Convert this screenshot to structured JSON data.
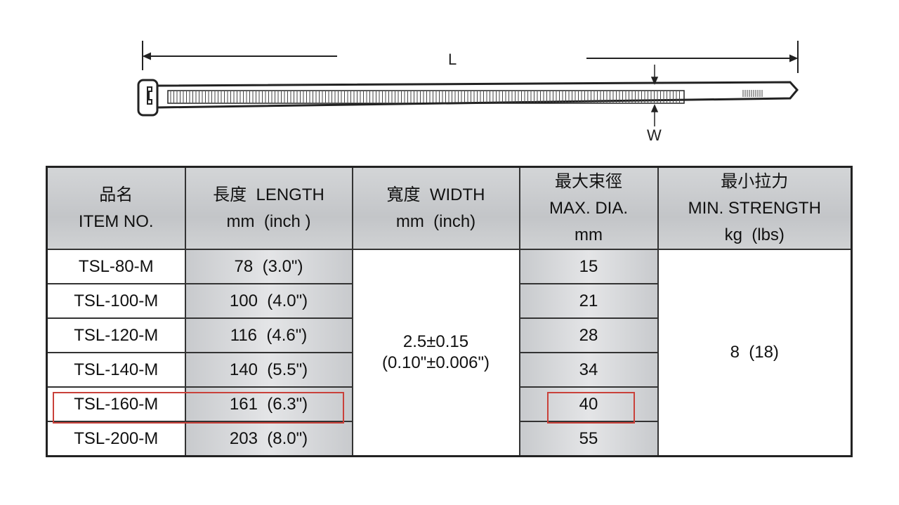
{
  "diagram": {
    "length_label": "L",
    "width_label": "W"
  },
  "table": {
    "headers": [
      {
        "zh": "品名",
        "en": "ITEM NO.",
        "unit": ""
      },
      {
        "zh": "長度",
        "en": "LENGTH",
        "unit": "mm  (inch )"
      },
      {
        "zh": "寬度",
        "en": "WIDTH",
        "unit": "mm  (inch)"
      },
      {
        "zh": "最大束徑",
        "en": "MAX. DIA.",
        "unit": "mm"
      },
      {
        "zh": "最小拉力",
        "en": "MIN. STRENGTH",
        "unit": "kg  (lbs)"
      }
    ],
    "rows": [
      {
        "item": "TSL-80-M",
        "length": "78  (3.0\")",
        "max_dia": "15"
      },
      {
        "item": "TSL-100-M",
        "length": "100  (4.0\")",
        "max_dia": "21"
      },
      {
        "item": "TSL-120-M",
        "length": "116  (4.6\")",
        "max_dia": "28"
      },
      {
        "item": "TSL-140-M",
        "length": "140  (5.5\")",
        "max_dia": "34"
      },
      {
        "item": "TSL-160-M",
        "length": "161  (6.3\")",
        "max_dia": "40",
        "highlighted": true
      },
      {
        "item": "TSL-200-M",
        "length": "203  (8.0\")",
        "max_dia": "55"
      }
    ],
    "width_value": {
      "mm": "2.5±0.15",
      "inch": "(0.10\"±0.006\")"
    },
    "strength_value": "8  (18)"
  },
  "colors": {
    "highlight": "#c9413a",
    "header_bg": "#c8cacd"
  }
}
